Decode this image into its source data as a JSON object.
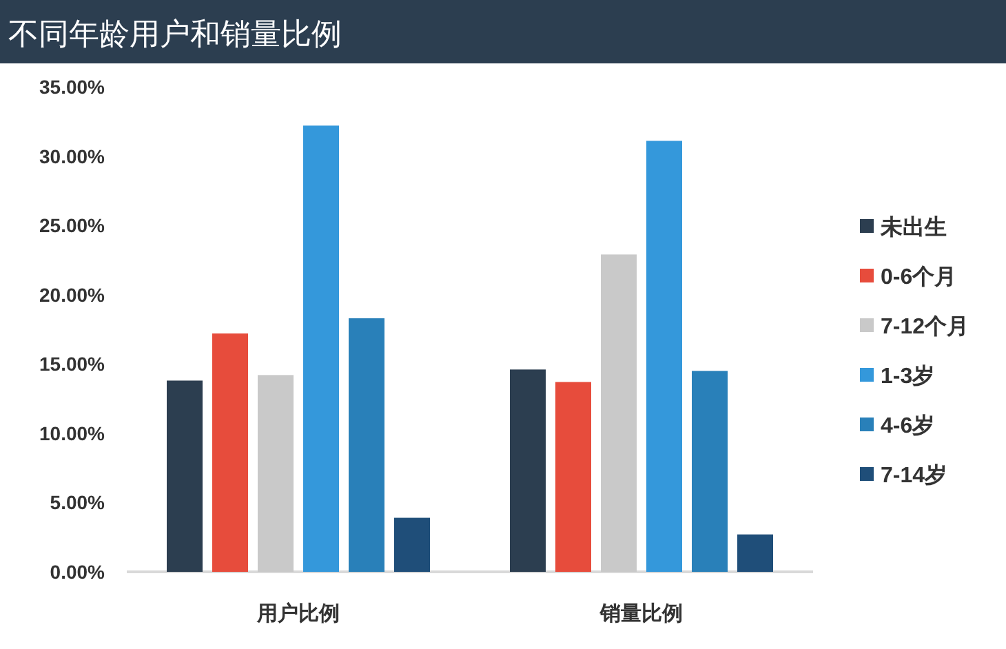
{
  "chart_data": {
    "type": "bar",
    "title": "不同年龄用户和销量比例",
    "categories": [
      "用户比例",
      "销量比例"
    ],
    "series": [
      {
        "name": "未出生",
        "color": "#2c3e50",
        "values": [
          13.8,
          14.6
        ]
      },
      {
        "name": "0-6个月",
        "color": "#e74c3c",
        "values": [
          17.2,
          13.7
        ]
      },
      {
        "name": "7-12个月",
        "color": "#c9c9c9",
        "values": [
          14.2,
          22.9
        ]
      },
      {
        "name": "1-3岁",
        "color": "#3498db",
        "values": [
          32.2,
          31.1
        ]
      },
      {
        "name": "4-6岁",
        "color": "#2980b9",
        "values": [
          18.3,
          14.5
        ]
      },
      {
        "name": "7-14岁",
        "color": "#1f4e79",
        "values": [
          3.9,
          2.7
        ]
      }
    ],
    "ylim": [
      0,
      35
    ],
    "yticks": [
      {
        "value": 0,
        "label": "0.00%"
      },
      {
        "value": 5,
        "label": "5.00%"
      },
      {
        "value": 10,
        "label": "10.00%"
      },
      {
        "value": 15,
        "label": "15.00%"
      },
      {
        "value": 20,
        "label": "20.00%"
      },
      {
        "value": 25,
        "label": "25.00%"
      },
      {
        "value": 30,
        "label": "30.00%"
      },
      {
        "value": 35,
        "label": "35.00%"
      }
    ],
    "grid": false,
    "legend": "right"
  }
}
